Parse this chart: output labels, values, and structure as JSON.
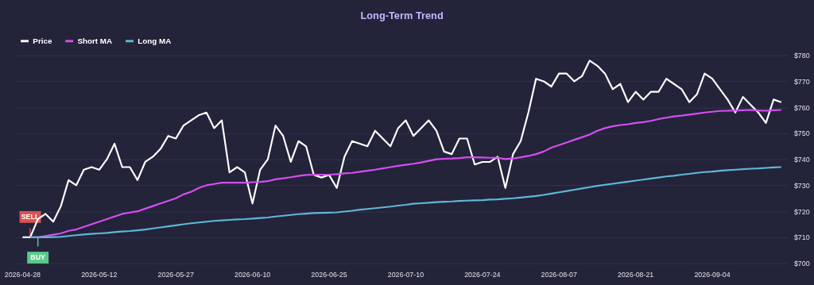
{
  "chart_data": {
    "type": "line",
    "title": "Long-Term Trend",
    "categories": [
      "2026-04-28",
      null,
      null,
      null,
      null,
      null,
      null,
      null,
      null,
      null,
      "2026-05-12",
      null,
      null,
      null,
      null,
      null,
      null,
      null,
      null,
      null,
      "2026-05-27",
      null,
      null,
      null,
      null,
      null,
      null,
      null,
      null,
      null,
      "2026-06-10",
      null,
      null,
      null,
      null,
      null,
      null,
      null,
      null,
      null,
      "2026-06-25",
      null,
      null,
      null,
      null,
      null,
      null,
      null,
      null,
      null,
      "2026-07-10",
      null,
      null,
      null,
      null,
      null,
      null,
      null,
      null,
      null,
      "2026-07-24",
      null,
      null,
      null,
      null,
      null,
      null,
      null,
      null,
      null,
      "2026-08-07",
      null,
      null,
      null,
      null,
      null,
      null,
      null,
      null,
      null,
      "2026-08-21",
      null,
      null,
      null,
      null,
      null,
      null,
      null,
      null,
      null,
      "2026-09-04",
      null,
      null,
      null,
      null,
      null,
      null,
      null,
      null,
      null
    ],
    "series": [
      {
        "name": "Price",
        "color": "#ffffff",
        "values": [
          710,
          710,
          717,
          719,
          716,
          722,
          732,
          730,
          736,
          737,
          736,
          740,
          746,
          737,
          737,
          732,
          739,
          741,
          744,
          749,
          748,
          753,
          755,
          757,
          758,
          752,
          755,
          735,
          737,
          735,
          723,
          736,
          740,
          753,
          749,
          739,
          747,
          745,
          734,
          733,
          734,
          729,
          741,
          747,
          746,
          745,
          751,
          748,
          745,
          752,
          755,
          749,
          752,
          755,
          751,
          743,
          742,
          748,
          748,
          738,
          739,
          739,
          741,
          729,
          742,
          747,
          758,
          771,
          770,
          768,
          773,
          773,
          770,
          772,
          778,
          776,
          773,
          767,
          769,
          762,
          766,
          763,
          766,
          766,
          771,
          769,
          767,
          762,
          765,
          773,
          771,
          767,
          763,
          758,
          764,
          761,
          758,
          754,
          763,
          762
        ]
      },
      {
        "name": "Short MA",
        "color": "#d64ef0",
        "values": [
          null,
          710,
          710,
          710.5,
          711,
          711.5,
          712.5,
          713,
          714,
          715,
          716,
          717,
          718,
          719,
          719.5,
          720,
          721,
          722,
          723,
          724,
          725,
          726.5,
          727.5,
          729,
          730,
          730.5,
          731,
          731,
          731,
          731,
          731.2,
          731.3,
          731.6,
          732.3,
          732.7,
          733.1,
          733.6,
          734,
          734.1,
          734.1,
          734.1,
          734.3,
          734.6,
          734.8,
          735.2,
          735.6,
          736,
          736.5,
          737,
          737.5,
          737.9,
          738.3,
          738.8,
          739.4,
          740,
          740.2,
          740.3,
          740.5,
          740.8,
          740.8,
          740.7,
          740.6,
          740.6,
          740.1,
          740.3,
          740.8,
          741.3,
          742,
          743,
          744.5,
          745.5,
          746.5,
          747.5,
          748.5,
          749.5,
          751,
          752,
          752.7,
          753.2,
          753.5,
          754,
          754.3,
          754.8,
          755.5,
          756,
          756.5,
          756.8,
          757.2,
          757.6,
          758,
          758.3,
          758.6,
          758.7,
          758.8,
          758.9,
          759,
          758.8,
          758.7,
          758.9,
          759
        ]
      },
      {
        "name": "Long MA",
        "color": "#5fb8d6",
        "values": [
          null,
          710,
          710,
          710,
          710.1,
          710.2,
          710.5,
          710.8,
          711.1,
          711.3,
          711.5,
          711.7,
          712,
          712.2,
          712.4,
          712.7,
          713,
          713.4,
          713.8,
          714.2,
          714.6,
          715,
          715.4,
          715.7,
          716,
          716.3,
          716.5,
          716.7,
          716.9,
          717,
          717.2,
          717.4,
          717.6,
          718,
          718.3,
          718.6,
          718.9,
          719.1,
          719.3,
          719.4,
          719.5,
          719.6,
          719.9,
          720.2,
          720.6,
          720.9,
          721.2,
          721.5,
          721.8,
          722.2,
          722.5,
          722.9,
          723.1,
          723.3,
          723.5,
          723.7,
          723.8,
          724,
          724.1,
          724.2,
          724.3,
          724.5,
          724.6,
          724.8,
          725,
          725.3,
          725.6,
          725.9,
          726.3,
          726.8,
          727.3,
          727.8,
          728.3,
          728.8,
          729.3,
          729.8,
          730.2,
          730.6,
          731,
          731.4,
          731.8,
          732.2,
          732.6,
          733,
          733.4,
          733.7,
          734.1,
          734.4,
          734.8,
          735.1,
          735.3,
          735.6,
          735.8,
          736,
          736.2,
          736.4,
          736.5,
          736.7,
          736.9,
          737
        ]
      }
    ],
    "ylim": [
      700,
      780
    ],
    "yticks": [
      {
        "value": 700,
        "label": "$700"
      },
      {
        "value": 710,
        "label": "$710"
      },
      {
        "value": 720,
        "label": "$720"
      },
      {
        "value": 730,
        "label": "$730"
      },
      {
        "value": 740,
        "label": "$740"
      },
      {
        "value": 750,
        "label": "$750"
      },
      {
        "value": 760,
        "label": "$760"
      },
      {
        "value": 770,
        "label": "$770"
      },
      {
        "value": 780,
        "label": "$780"
      }
    ],
    "annotations": [
      {
        "text": "SELL",
        "y": 710
      },
      {
        "text": "BUY",
        "y": 710
      }
    ],
    "grid": "y",
    "legend": "top",
    "marker": "none",
    "line_style": "solid"
  }
}
